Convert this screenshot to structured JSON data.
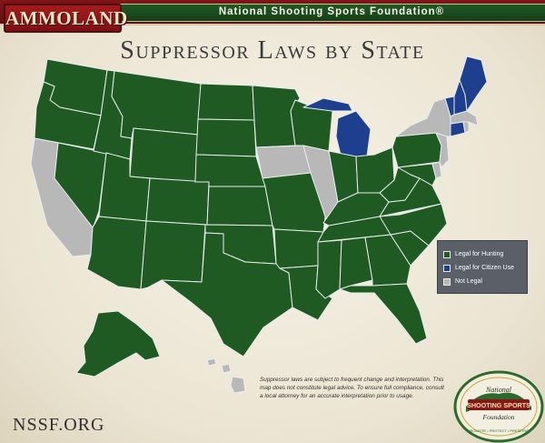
{
  "header": {
    "logo_text": "AMMOLAND",
    "org_name": "National Shooting Sports Foundation®"
  },
  "title": "Suppressor Laws by State",
  "colors": {
    "legal_hunting": "#1f5a22",
    "legal_citizen": "#1d3f8e",
    "not_legal": "#b8b8b8",
    "border": "#e9ecef"
  },
  "legend": {
    "items": [
      {
        "label": "Legal for Hunting",
        "status": "hunting"
      },
      {
        "label": "Legal for Citizen Use",
        "status": "citizen"
      },
      {
        "label": "Not Legal",
        "status": "not_legal"
      }
    ]
  },
  "states": [
    {
      "abbr": "WA",
      "status": "hunting"
    },
    {
      "abbr": "OR",
      "status": "hunting"
    },
    {
      "abbr": "CA",
      "status": "not_legal"
    },
    {
      "abbr": "NV",
      "status": "hunting"
    },
    {
      "abbr": "ID",
      "status": "hunting"
    },
    {
      "abbr": "MT",
      "status": "hunting"
    },
    {
      "abbr": "WY",
      "status": "hunting"
    },
    {
      "abbr": "UT",
      "status": "hunting"
    },
    {
      "abbr": "AZ",
      "status": "hunting"
    },
    {
      "abbr": "CO",
      "status": "hunting"
    },
    {
      "abbr": "NM",
      "status": "hunting"
    },
    {
      "abbr": "ND",
      "status": "hunting"
    },
    {
      "abbr": "SD",
      "status": "hunting"
    },
    {
      "abbr": "NE",
      "status": "hunting"
    },
    {
      "abbr": "KS",
      "status": "hunting"
    },
    {
      "abbr": "OK",
      "status": "hunting"
    },
    {
      "abbr": "TX",
      "status": "hunting"
    },
    {
      "abbr": "MN",
      "status": "hunting"
    },
    {
      "abbr": "IA",
      "status": "not_legal"
    },
    {
      "abbr": "MO",
      "status": "hunting"
    },
    {
      "abbr": "AR",
      "status": "hunting"
    },
    {
      "abbr": "LA",
      "status": "hunting"
    },
    {
      "abbr": "WI",
      "status": "hunting"
    },
    {
      "abbr": "IL",
      "status": "not_legal"
    },
    {
      "abbr": "MI",
      "status": "citizen"
    },
    {
      "abbr": "IN",
      "status": "hunting"
    },
    {
      "abbr": "OH",
      "status": "hunting"
    },
    {
      "abbr": "KY",
      "status": "hunting"
    },
    {
      "abbr": "TN",
      "status": "hunting"
    },
    {
      "abbr": "MS",
      "status": "hunting"
    },
    {
      "abbr": "AL",
      "status": "hunting"
    },
    {
      "abbr": "GA",
      "status": "hunting"
    },
    {
      "abbr": "FL",
      "status": "hunting"
    },
    {
      "abbr": "SC",
      "status": "hunting"
    },
    {
      "abbr": "NC",
      "status": "hunting"
    },
    {
      "abbr": "VA",
      "status": "hunting"
    },
    {
      "abbr": "WV",
      "status": "hunting"
    },
    {
      "abbr": "MD",
      "status": "hunting"
    },
    {
      "abbr": "DE",
      "status": "not_legal"
    },
    {
      "abbr": "PA",
      "status": "hunting"
    },
    {
      "abbr": "NJ",
      "status": "not_legal"
    },
    {
      "abbr": "NY",
      "status": "not_legal"
    },
    {
      "abbr": "CT",
      "status": "citizen"
    },
    {
      "abbr": "RI",
      "status": "not_legal"
    },
    {
      "abbr": "MA",
      "status": "not_legal"
    },
    {
      "abbr": "VT",
      "status": "citizen"
    },
    {
      "abbr": "NH",
      "status": "citizen"
    },
    {
      "abbr": "ME",
      "status": "citizen"
    },
    {
      "abbr": "AK",
      "status": "hunting"
    },
    {
      "abbr": "HI",
      "status": "not_legal"
    }
  ],
  "disclaimer": "Suppressor laws are subject to frequent change and interpretation. This map does not constitute legal advice. To ensure full compliance, consult a local attorney for an accurate interpretation prior to usage.",
  "footer": {
    "site": "NSSF.ORG",
    "badge_top": "National",
    "badge_middle": "SHOOTING SPORTS",
    "badge_bottom": "Foundation",
    "badge_motto": "PROMOTE • PROTECT • PRESERVE"
  }
}
